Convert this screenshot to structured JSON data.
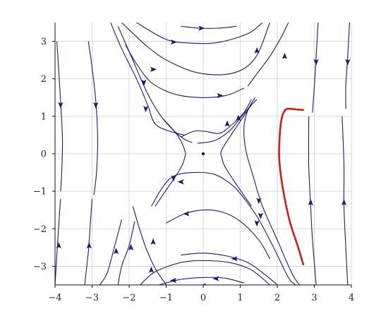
{
  "chart_data": {
    "type": "line",
    "title": "",
    "xlabel": "",
    "ylabel": "",
    "xlim": [
      -4,
      4
    ],
    "ylim": [
      -3.5,
      3.5
    ],
    "grid": true,
    "x_ticks": [
      -4,
      -3,
      -2,
      -1,
      0,
      1,
      2,
      3,
      4
    ],
    "y_ticks": [
      -3,
      -2,
      -1,
      0,
      1,
      2,
      3
    ],
    "x_tick_labels": [
      "−4",
      "−3",
      "−2",
      "−1",
      "0",
      "1",
      "2",
      "3",
      "4"
    ],
    "y_tick_labels": [
      "−3",
      "−2",
      "−1",
      "0",
      "1",
      "2",
      "3"
    ],
    "colors": {
      "streamline": "#1a1a6e",
      "trajectory": "#d11a1a",
      "grid": "#c9ced6",
      "axis": "#111111"
    },
    "equilibrium": {
      "x": 0,
      "y": 0
    },
    "streamlines": [
      {
        "points": [
          [
            -3.95,
            3.0
          ],
          [
            -3.9,
            2.2
          ],
          [
            -3.85,
            1.4
          ],
          [
            -3.8,
            0.4
          ],
          [
            -3.82,
            -0.5
          ],
          [
            -3.85,
            -1.0
          ]
        ],
        "arrows": [
          {
            "x": -3.85,
            "y": 1.3,
            "dir": "down"
          }
        ]
      },
      {
        "points": [
          [
            -3.1,
            3.0
          ],
          [
            -3.0,
            2.3
          ],
          [
            -2.9,
            1.4
          ],
          [
            -2.85,
            0.4
          ],
          [
            -2.88,
            -0.5
          ],
          [
            -2.95,
            -1.1
          ]
        ],
        "arrows": [
          {
            "x": -2.9,
            "y": 1.3,
            "dir": "down"
          }
        ]
      },
      {
        "points": [
          [
            -3.85,
            -1.2
          ],
          [
            -3.9,
            -1.9
          ],
          [
            -3.95,
            -2.7
          ],
          [
            -4.0,
            -3.5
          ]
        ],
        "arrows": [
          {
            "x": -3.9,
            "y": -2.45,
            "dir": "up"
          }
        ]
      },
      {
        "points": [
          [
            -3.0,
            -1.2
          ],
          [
            -3.05,
            -1.9
          ],
          [
            -3.1,
            -2.6
          ],
          [
            -3.2,
            -3.5
          ]
        ],
        "arrows": [
          {
            "x": -3.08,
            "y": -2.45,
            "dir": "up"
          }
        ]
      },
      {
        "points": [
          [
            3.1,
            3.5
          ],
          [
            3.05,
            2.6
          ],
          [
            3.0,
            1.8
          ],
          [
            2.95,
            1.1
          ]
        ],
        "arrows": [
          {
            "x": 3.05,
            "y": 2.45,
            "dir": "down"
          }
        ]
      },
      {
        "points": [
          [
            3.95,
            3.5
          ],
          [
            3.9,
            2.6
          ],
          [
            3.85,
            1.8
          ],
          [
            3.85,
            1.2
          ]
        ],
        "arrows": [
          {
            "x": 3.9,
            "y": 2.45,
            "dir": "down"
          }
        ]
      },
      {
        "points": [
          [
            2.85,
            1.0
          ],
          [
            2.85,
            -0.3
          ],
          [
            2.9,
            -1.4
          ],
          [
            2.95,
            -2.3
          ],
          [
            3.05,
            -3.5
          ]
        ],
        "arrows": [
          {
            "x": 2.9,
            "y": -1.3,
            "dir": "up"
          }
        ]
      },
      {
        "points": [
          [
            3.75,
            1.0
          ],
          [
            3.8,
            -0.3
          ],
          [
            3.8,
            -1.4
          ],
          [
            3.85,
            -2.5
          ],
          [
            3.9,
            -3.5
          ]
        ],
        "arrows": [
          {
            "x": 3.8,
            "y": -1.3,
            "dir": "up"
          }
        ]
      },
      {
        "points": [
          [
            -0.6,
            3.4
          ],
          [
            -0.1,
            3.35
          ],
          [
            0.4,
            3.35
          ],
          [
            0.9,
            3.4
          ]
        ],
        "arrows": [
          {
            "x": -0.05,
            "y": 3.35,
            "dir": "right"
          }
        ]
      },
      {
        "points": [
          [
            -1.8,
            3.5
          ],
          [
            -1.0,
            3.05
          ],
          [
            -0.3,
            2.95
          ],
          [
            0.4,
            2.97
          ],
          [
            1.2,
            3.2
          ],
          [
            1.6,
            3.5
          ]
        ],
        "arrows": [
          {
            "x": -0.8,
            "y": 2.98,
            "dir": "right"
          }
        ]
      },
      {
        "points": [
          [
            -2.2,
            3.5
          ],
          [
            -1.5,
            2.85
          ],
          [
            -0.9,
            2.45
          ],
          [
            -0.1,
            2.15
          ],
          [
            0.8,
            2.15
          ],
          [
            1.4,
            2.55
          ],
          [
            1.8,
            3.5
          ]
        ],
        "arrows": [
          {
            "x": -1.35,
            "y": 2.25,
            "dir": "right"
          },
          {
            "x": 1.45,
            "y": 2.75,
            "dir": "up"
          }
        ]
      },
      {
        "points": [
          [
            -2.1,
            2.9
          ],
          [
            -1.8,
            2.4
          ],
          [
            -1.4,
            1.9
          ],
          [
            -0.8,
            1.6
          ],
          [
            -0.1,
            1.5
          ],
          [
            0.6,
            1.55
          ],
          [
            1.1,
            1.75
          ]
        ],
        "arrows": [
          {
            "x": 0.45,
            "y": 1.55,
            "dir": "right"
          }
        ]
      },
      {
        "points": [
          [
            1.2,
            1.8
          ],
          [
            1.5,
            2.2
          ],
          [
            1.8,
            2.6
          ],
          [
            2.1,
            3.1
          ],
          [
            2.3,
            3.5
          ]
        ],
        "arrows": [
          {
            "x": 2.2,
            "y": 2.6,
            "dir": "up"
          }
        ]
      },
      {
        "points": [
          [
            -2.5,
            3.5
          ],
          [
            -2.2,
            2.8
          ],
          [
            -1.8,
            2.0
          ],
          [
            -1.5,
            1.3
          ],
          [
            -1.3,
            0.8
          ],
          [
            -0.9,
            0.6
          ],
          [
            -0.5,
            0.5
          ]
        ],
        "arrows": [
          {
            "x": -1.55,
            "y": 1.2,
            "dir": "down"
          }
        ]
      },
      {
        "points": [
          [
            -0.6,
            0.45
          ],
          [
            -0.25,
            0.6
          ],
          [
            0.05,
            0.6
          ],
          [
            0.45,
            0.55
          ],
          [
            0.8,
            0.8
          ],
          [
            1.1,
            1.1
          ],
          [
            1.3,
            1.45
          ]
        ],
        "arrows": [
          {
            "x": 0.65,
            "y": 0.8,
            "dir": "up"
          }
        ]
      },
      {
        "points": [
          [
            -2.3,
            3.4
          ],
          [
            -1.9,
            2.5
          ],
          [
            -1.5,
            1.6
          ],
          [
            -1.1,
            0.95
          ],
          [
            -0.6,
            0.45
          ],
          [
            -0.3,
            0.3
          ]
        ],
        "arrows": [
          {
            "x": -1.6,
            "y": 1.9,
            "dir": "down"
          }
        ]
      },
      {
        "points": [
          [
            -0.15,
            0.28
          ],
          [
            0.3,
            0.35
          ],
          [
            0.7,
            0.6
          ],
          [
            1.0,
            0.95
          ],
          [
            1.3,
            1.3
          ],
          [
            1.45,
            1.45
          ]
        ],
        "arrows": [
          {
            "x": 0.95,
            "y": 0.95,
            "dir": "up"
          }
        ]
      },
      {
        "points": [
          [
            -1.1,
            0.95
          ],
          [
            -0.7,
            0.5
          ],
          [
            -0.5,
            0.1
          ],
          [
            -0.5,
            -0.1
          ],
          [
            -0.65,
            -0.45
          ],
          [
            -1.3,
            -1.4
          ]
        ],
        "arrows": [
          {
            "x": -0.8,
            "y": -0.65,
            "dir": "down"
          }
        ]
      },
      {
        "points": [
          [
            1.3,
            1.3
          ],
          [
            0.75,
            0.5
          ],
          [
            0.5,
            0.1
          ],
          [
            0.5,
            -0.1
          ],
          [
            0.65,
            -0.45
          ],
          [
            1.3,
            -1.4
          ]
        ],
        "arrows": [
          {
            "x": 1.45,
            "y": -1.85,
            "dir": "down"
          }
        ]
      },
      {
        "points": [
          [
            -1.4,
            -1.4
          ],
          [
            -1.1,
            -0.9
          ],
          [
            -0.8,
            -0.6
          ],
          [
            -0.3,
            -0.5
          ],
          [
            0.3,
            -0.55
          ],
          [
            0.8,
            -0.85
          ],
          [
            1.15,
            -1.25
          ],
          [
            1.5,
            -1.75
          ],
          [
            1.9,
            -2.5
          ],
          [
            2.3,
            -3.3
          ],
          [
            2.5,
            -3.5
          ]
        ],
        "arrows": [
          {
            "x": -0.6,
            "y": -0.75,
            "dir": "left"
          },
          {
            "x": 1.55,
            "y": -1.65,
            "dir": "down"
          }
        ]
      },
      {
        "points": [
          [
            1.4,
            1.5
          ],
          [
            1.2,
            1.15
          ],
          [
            1.1,
            0.7
          ],
          [
            1.15,
            0.1
          ],
          [
            1.35,
            -0.6
          ],
          [
            1.6,
            -1.4
          ],
          [
            2.0,
            -2.3
          ],
          [
            2.4,
            -3.2
          ],
          [
            2.6,
            -3.5
          ]
        ],
        "arrows": [
          {
            "x": 1.5,
            "y": -1.25,
            "dir": "down"
          }
        ]
      },
      {
        "points": [
          [
            -1.0,
            -1.85
          ],
          [
            -0.5,
            -1.6
          ],
          [
            0.0,
            -1.5
          ],
          [
            0.5,
            -1.55
          ],
          [
            1.0,
            -1.8
          ],
          [
            1.5,
            -2.3
          ],
          [
            1.8,
            -2.8
          ]
        ],
        "arrows": [
          {
            "x": -0.45,
            "y": -1.6,
            "dir": "left"
          }
        ]
      },
      {
        "points": [
          [
            -1.9,
            -1.4
          ],
          [
            -1.75,
            -1.9
          ],
          [
            -1.55,
            -2.5
          ],
          [
            -1.3,
            -3.05
          ],
          [
            -1.0,
            -3.5
          ]
        ],
        "arrows": [
          {
            "x": -1.35,
            "y": -2.35,
            "dir": "up"
          }
        ]
      },
      {
        "points": [
          [
            -2.2,
            -1.75
          ],
          [
            -2.4,
            -2.5
          ],
          [
            -2.6,
            -3.2
          ],
          [
            -2.8,
            -3.5
          ]
        ],
        "arrows": [
          {
            "x": -2.35,
            "y": -2.6,
            "dir": "up"
          }
        ]
      },
      {
        "points": [
          [
            -1.85,
            -1.8
          ],
          [
            -2.0,
            -2.45
          ],
          [
            -2.2,
            -3.0
          ],
          [
            -2.3,
            -3.5
          ]
        ],
        "arrows": [
          {
            "x": -1.95,
            "y": -2.5,
            "dir": "up"
          }
        ]
      },
      {
        "points": [
          [
            -0.6,
            -2.7
          ],
          [
            0.0,
            -2.65
          ],
          [
            0.6,
            -2.72
          ],
          [
            1.2,
            -2.9
          ],
          [
            1.7,
            -3.25
          ],
          [
            2.0,
            -3.5
          ]
        ],
        "arrows": [
          {
            "x": 0.85,
            "y": -2.8,
            "dir": "left"
          }
        ]
      },
      {
        "points": [
          [
            -1.7,
            -3.5
          ],
          [
            -1.3,
            -3.15
          ],
          [
            -0.6,
            -2.9
          ],
          [
            0.0,
            -2.85
          ],
          [
            0.7,
            -2.9
          ],
          [
            1.3,
            -3.1
          ],
          [
            1.8,
            -3.5
          ]
        ],
        "arrows": [
          {
            "x": -1.4,
            "y": -3.1,
            "dir": "up"
          }
        ]
      },
      {
        "points": [
          [
            -1.2,
            -3.5
          ],
          [
            -0.6,
            -3.35
          ],
          [
            0.0,
            -3.3
          ],
          [
            0.6,
            -3.32
          ],
          [
            1.1,
            -3.45
          ]
        ],
        "arrows": [
          {
            "x": -0.8,
            "y": -3.38,
            "dir": "left"
          },
          {
            "x": 0.35,
            "y": -3.33,
            "dir": "left"
          }
        ]
      },
      {
        "points": [
          [
            -0.35,
            -3.55
          ],
          [
            0.0,
            -3.52
          ],
          [
            0.35,
            -3.54
          ]
        ],
        "arrows": [
          {
            "x": 0.0,
            "y": -3.52,
            "dir": "left"
          }
        ]
      }
    ],
    "trajectory": {
      "points": [
        [
          2.7,
          -2.95
        ],
        [
          2.55,
          -2.45
        ],
        [
          2.35,
          -1.85
        ],
        [
          2.2,
          -1.2
        ],
        [
          2.1,
          -0.6
        ],
        [
          2.05,
          -0.05
        ],
        [
          2.07,
          0.55
        ],
        [
          2.12,
          0.95
        ],
        [
          2.2,
          1.15
        ],
        [
          2.3,
          1.2
        ],
        [
          2.55,
          1.18
        ],
        [
          2.7,
          1.17
        ]
      ]
    }
  }
}
